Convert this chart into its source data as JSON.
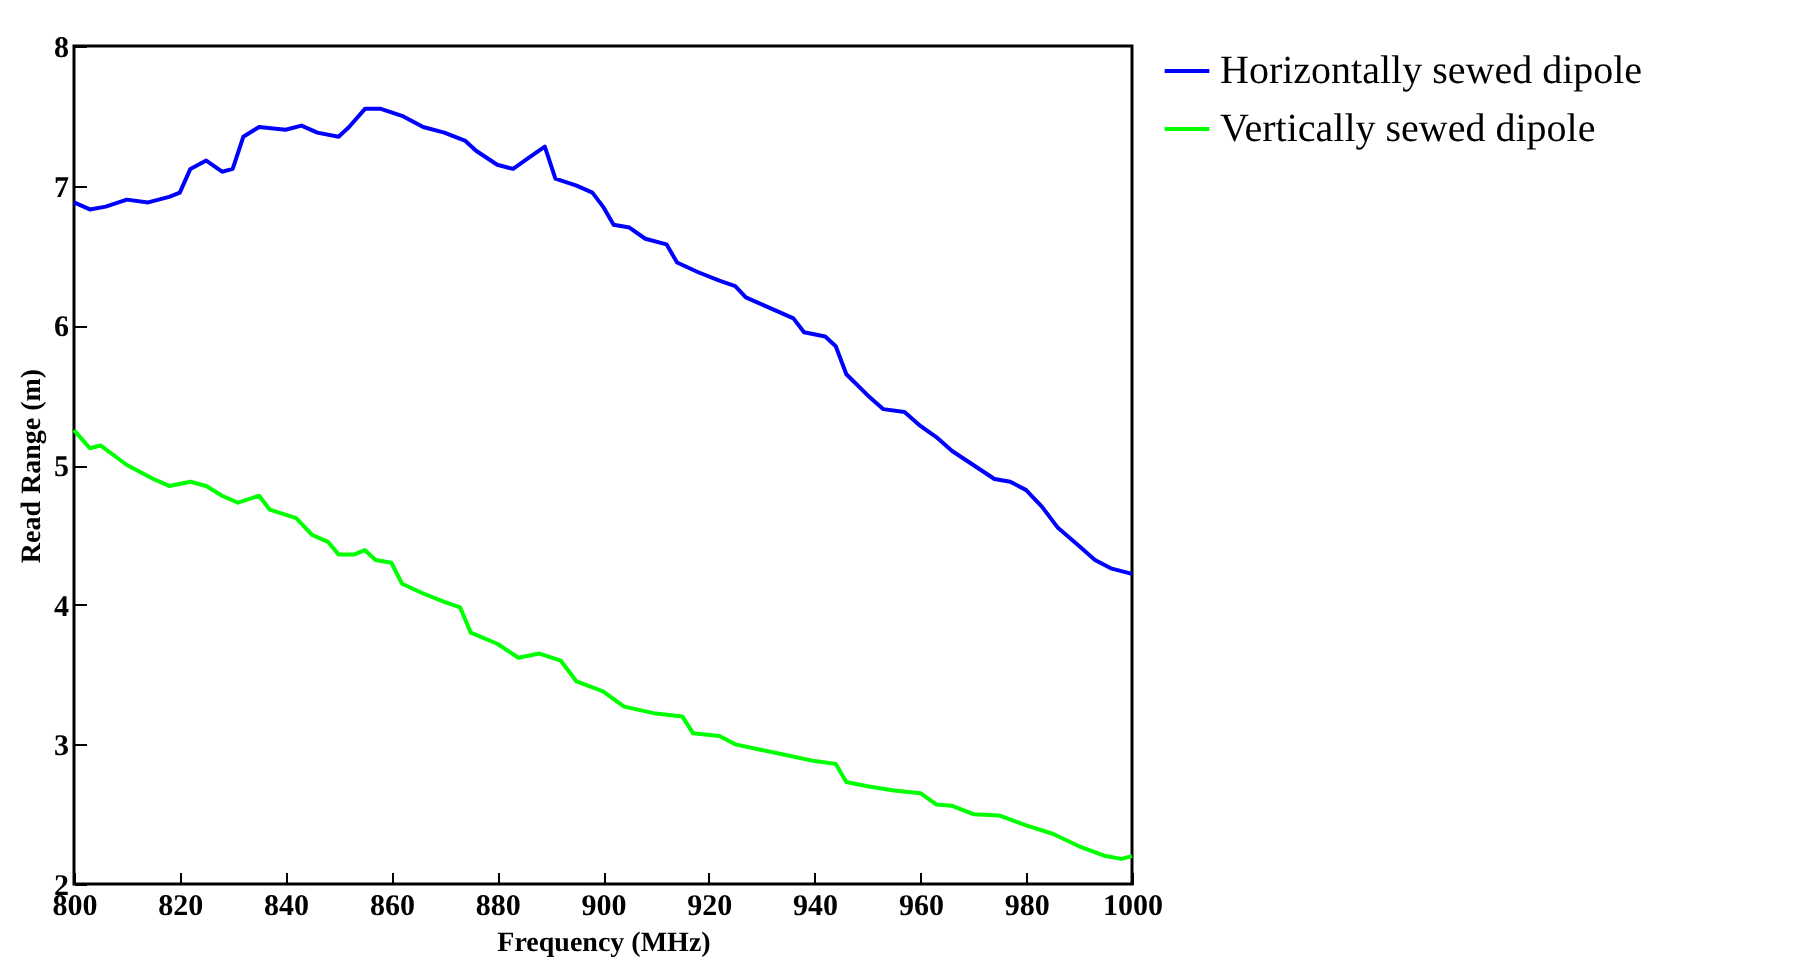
{
  "chart_data": {
    "type": "line",
    "xlabel": "Frequency (MHz)",
    "ylabel": "Read Range (m)",
    "xlim": [
      800,
      1000
    ],
    "xticks": [
      800,
      820,
      840,
      860,
      880,
      900,
      920,
      940,
      960,
      980,
      1000
    ],
    "ylim": [
      2,
      8
    ],
    "yticks": [
      2,
      3,
      4,
      5,
      6,
      7,
      8
    ],
    "legend": "top right",
    "series": [
      {
        "name": "Horizontally sewed dipole",
        "color": "#0000ff",
        "x": [
          800,
          803,
          806,
          810,
          814,
          818,
          820,
          822,
          825,
          828,
          830,
          832,
          835,
          840,
          843,
          846,
          850,
          852,
          855,
          858,
          862,
          866,
          870,
          874,
          876,
          880,
          883,
          886,
          889,
          891,
          895,
          898,
          900,
          902,
          905,
          908,
          912,
          914,
          918,
          922,
          925,
          927,
          930,
          933,
          936,
          938,
          942,
          944,
          946,
          950,
          953,
          957,
          960,
          963,
          966,
          970,
          974,
          977,
          980,
          983,
          986,
          990,
          993,
          996,
          1000
        ],
        "values": [
          6.88,
          6.83,
          6.85,
          6.9,
          6.88,
          6.92,
          6.95,
          7.12,
          7.18,
          7.1,
          7.12,
          7.35,
          7.42,
          7.4,
          7.43,
          7.38,
          7.35,
          7.42,
          7.55,
          7.55,
          7.5,
          7.42,
          7.38,
          7.32,
          7.25,
          7.15,
          7.12,
          7.2,
          7.28,
          7.05,
          7.0,
          6.95,
          6.85,
          6.72,
          6.7,
          6.62,
          6.58,
          6.45,
          6.38,
          6.32,
          6.28,
          6.2,
          6.15,
          6.1,
          6.05,
          5.95,
          5.92,
          5.85,
          5.65,
          5.5,
          5.4,
          5.38,
          5.28,
          5.2,
          5.1,
          5.0,
          4.9,
          4.88,
          4.82,
          4.7,
          4.55,
          4.42,
          4.32,
          4.26,
          4.22
        ]
      },
      {
        "name": "Vertically sewed dipole",
        "color": "#00ff00",
        "x": [
          800,
          803,
          805,
          810,
          815,
          818,
          822,
          825,
          828,
          831,
          835,
          837,
          842,
          845,
          848,
          850,
          853,
          855,
          857,
          860,
          862,
          866,
          870,
          873,
          875,
          880,
          884,
          888,
          892,
          895,
          900,
          904,
          910,
          915,
          917,
          922,
          925,
          930,
          935,
          940,
          944,
          946,
          950,
          955,
          960,
          963,
          966,
          970,
          975,
          980,
          985,
          990,
          995,
          998,
          1000
        ],
        "values": [
          5.25,
          5.12,
          5.14,
          5.0,
          4.9,
          4.85,
          4.88,
          4.85,
          4.78,
          4.73,
          4.78,
          4.68,
          4.62,
          4.5,
          4.45,
          4.36,
          4.36,
          4.39,
          4.32,
          4.3,
          4.15,
          4.08,
          4.02,
          3.98,
          3.8,
          3.72,
          3.62,
          3.65,
          3.6,
          3.45,
          3.38,
          3.27,
          3.22,
          3.2,
          3.08,
          3.06,
          3.0,
          2.96,
          2.92,
          2.88,
          2.86,
          2.73,
          2.7,
          2.67,
          2.65,
          2.57,
          2.56,
          2.5,
          2.49,
          2.42,
          2.36,
          2.27,
          2.2,
          2.18,
          2.2
        ]
      }
    ]
  }
}
